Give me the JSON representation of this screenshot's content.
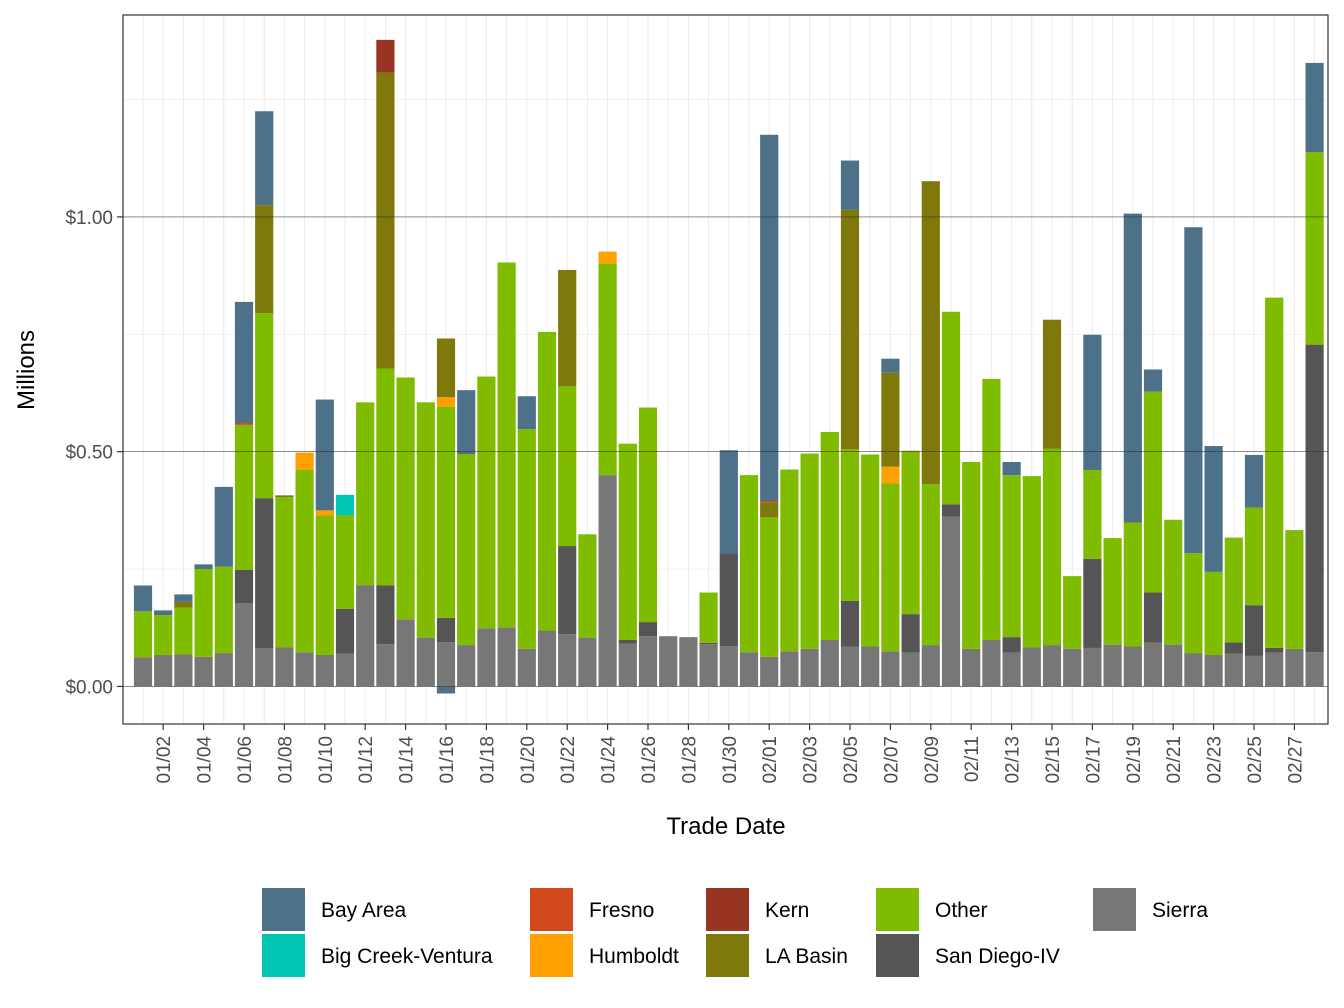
{
  "chart_data": {
    "type": "bar",
    "stacked": true,
    "xlabel": "Trade Date",
    "ylabel": "Millions",
    "ylim": [
      -0.08,
      1.43
    ],
    "y_ticks": [
      0.0,
      0.5,
      1.0
    ],
    "y_tick_labels": [
      "$0.00",
      "$0.50",
      "$1.00"
    ],
    "categories": [
      "01/01",
      "01/02",
      "01/03",
      "01/04",
      "01/05",
      "01/06",
      "01/07",
      "01/08",
      "01/09",
      "01/10",
      "01/11",
      "01/12",
      "01/13",
      "01/14",
      "01/15",
      "01/16",
      "01/17",
      "01/18",
      "01/19",
      "01/20",
      "01/21",
      "01/22",
      "01/23",
      "01/24",
      "01/25",
      "01/26",
      "01/27",
      "01/28",
      "01/29",
      "01/30",
      "01/31",
      "02/01",
      "02/02",
      "02/03",
      "02/04",
      "02/05",
      "02/06",
      "02/07",
      "02/08",
      "02/09",
      "02/10",
      "02/11",
      "02/12",
      "02/13",
      "02/14",
      "02/15",
      "02/16",
      "02/17",
      "02/18",
      "02/19",
      "02/20",
      "02/21",
      "02/22",
      "02/23",
      "02/24",
      "02/25",
      "02/26",
      "02/27",
      "02/28"
    ],
    "x_tick_labels": [
      "01/02",
      "01/04",
      "01/06",
      "01/08",
      "01/10",
      "01/12",
      "01/14",
      "01/16",
      "01/18",
      "01/20",
      "01/22",
      "01/24",
      "01/26",
      "01/28",
      "01/30",
      "02/01",
      "02/03",
      "02/05",
      "02/07",
      "02/09",
      "02/11",
      "02/13",
      "02/15",
      "02/17",
      "02/19",
      "02/21",
      "02/23",
      "02/25",
      "02/27"
    ],
    "legend_position": "bottom",
    "series": [
      {
        "name": "Sierra",
        "color": "#777777",
        "values": [
          0.062,
          0.067,
          0.068,
          0.063,
          0.071,
          0.177,
          0.081,
          0.083,
          0.073,
          0.067,
          0.07,
          0.215,
          0.09,
          0.143,
          0.104,
          0.094,
          0.088,
          0.124,
          0.126,
          0.08,
          0.119,
          0.111,
          0.104,
          0.45,
          0.091,
          0.107,
          0.107,
          0.105,
          0.09,
          0.086,
          0.073,
          0.063,
          0.075,
          0.08,
          0.099,
          0.085,
          0.085,
          0.075,
          0.072,
          0.088,
          0.362,
          0.08,
          0.099,
          0.072,
          0.083,
          0.088,
          0.08,
          0.082,
          0.089,
          0.085,
          0.093,
          0.089,
          0.071,
          0.067,
          0.07,
          0.065,
          0.072,
          0.08,
          0.073
        ]
      },
      {
        "name": "San Diego-IV",
        "color": "#555555",
        "values": [
          0,
          0,
          0,
          0,
          0,
          0.071,
          0.32,
          0,
          0,
          0,
          0.095,
          0,
          0.125,
          0,
          0,
          0.052,
          0,
          0,
          0,
          0,
          0,
          0.188,
          0,
          0,
          0.008,
          0.03,
          0,
          0,
          0.003,
          0.197,
          0,
          0,
          0,
          0,
          0,
          0.097,
          0,
          0,
          0.082,
          0,
          0.026,
          0,
          0,
          0.033,
          0,
          0,
          0,
          0.19,
          0,
          0,
          0.107,
          0,
          0,
          0,
          0.024,
          0.108,
          0.01,
          0,
          0.655
        ]
      },
      {
        "name": "Other",
        "color": "#7fbc00",
        "values": [
          0.098,
          0.085,
          0.1,
          0.187,
          0.184,
          0.309,
          0.394,
          0.32,
          0.388,
          0.297,
          0.2,
          0.39,
          0.462,
          0.515,
          0.501,
          0.45,
          0.407,
          0.536,
          0.777,
          0.468,
          0.636,
          0.34,
          0.22,
          0.451,
          0.418,
          0.457,
          0,
          0,
          0.107,
          0,
          0.377,
          0.297,
          0.387,
          0.416,
          0.443,
          0.323,
          0.409,
          0.358,
          0.348,
          0.343,
          0.41,
          0.398,
          0.556,
          0.345,
          0.365,
          0.418,
          0.155,
          0.189,
          0.227,
          0.264,
          0.428,
          0.266,
          0.213,
          0.177,
          0.223,
          0.208,
          0.746,
          0.253,
          0.41
        ]
      },
      {
        "name": "Humboldt",
        "color": "#ff9f00",
        "values": [
          0,
          0,
          0,
          0,
          0,
          0,
          0,
          0,
          0.037,
          0.011,
          0,
          0,
          0,
          0,
          0,
          0.02,
          0,
          0,
          0,
          0,
          0,
          0,
          0,
          0.025,
          0,
          0,
          0,
          0,
          0,
          0,
          0,
          0,
          0,
          0,
          0,
          0,
          0,
          0.035,
          0,
          0,
          0,
          0,
          0,
          0,
          0,
          0,
          0,
          0,
          0,
          0,
          0,
          0,
          0,
          0,
          0,
          0,
          0,
          0,
          0
        ]
      },
      {
        "name": "Big Creek-Ventura",
        "color": "#00c6b4",
        "values": [
          0,
          0,
          0,
          0,
          0,
          0,
          0,
          0,
          0,
          0,
          0.043,
          0,
          0,
          0,
          0,
          0,
          0,
          0,
          0,
          0,
          0,
          0,
          0,
          0,
          0,
          0,
          0,
          0,
          0,
          0,
          0,
          0,
          0,
          0,
          0,
          0,
          0,
          0,
          0,
          0,
          0,
          0,
          0,
          0,
          0,
          0,
          0,
          0,
          0,
          0,
          0,
          0,
          0,
          0,
          0,
          0,
          0,
          0,
          0
        ]
      },
      {
        "name": "LA Basin",
        "color": "#7f780b",
        "values": [
          0,
          0,
          0.012,
          0,
          0,
          0,
          0.23,
          0.004,
          0,
          0,
          0,
          0,
          0.63,
          0,
          0,
          0.125,
          0,
          0,
          0,
          0,
          0,
          0.248,
          0,
          0,
          0,
          0,
          0,
          0,
          0,
          0,
          0,
          0.032,
          0,
          0,
          0,
          0.51,
          0,
          0.2,
          0,
          0.645,
          0,
          0,
          0,
          0,
          0,
          0.275,
          0,
          0,
          0,
          0,
          0,
          0,
          0,
          0,
          0,
          0,
          0,
          0,
          0
        ]
      },
      {
        "name": "Fresno",
        "color": "#d04a1e",
        "values": [
          0,
          0,
          0,
          0,
          0,
          0.004,
          0,
          0,
          0,
          0,
          0,
          0,
          0,
          0,
          0,
          0,
          0,
          0,
          0,
          0,
          0,
          0,
          0,
          0,
          0,
          0,
          0,
          0,
          0,
          0,
          0,
          0.003,
          0,
          0,
          0,
          0,
          0,
          0,
          0,
          0,
          0,
          0,
          0,
          0,
          0,
          0,
          0,
          0,
          0,
          0,
          0,
          0,
          0,
          0,
          0,
          0,
          0,
          0,
          0
        ]
      },
      {
        "name": "Kern",
        "color": "#973522",
        "values": [
          0,
          0,
          0,
          0,
          0,
          0,
          0,
          0,
          0,
          0,
          0,
          0,
          0.07,
          0,
          0,
          0,
          0,
          0,
          0,
          0,
          0,
          0,
          0,
          0,
          0,
          0,
          0,
          0,
          0,
          0,
          0,
          0,
          0,
          0,
          0,
          0,
          0,
          0,
          0,
          0,
          0,
          0,
          0,
          0,
          0,
          0,
          0,
          0,
          0,
          0,
          0,
          0,
          0,
          0,
          0,
          0,
          0,
          0,
          0
        ]
      },
      {
        "name": "Bay Area",
        "color": "#4c7189",
        "values": [
          0.055,
          0.01,
          0.016,
          0.01,
          0.17,
          0.258,
          0.2,
          0,
          0,
          0.236,
          0,
          0,
          0,
          0,
          0,
          -0.015,
          0.136,
          0,
          0,
          0.07,
          0,
          0,
          0,
          0,
          0,
          0,
          0,
          0,
          0,
          0.22,
          0,
          0.78,
          0,
          0,
          0,
          0.105,
          0,
          0.03,
          0,
          0,
          0,
          0,
          0,
          0.028,
          0,
          0,
          0,
          0.288,
          0,
          0.658,
          0.047,
          0,
          0.694,
          0.268,
          0,
          0.112,
          0,
          0,
          0.19
        ]
      }
    ],
    "legend_order": [
      "Bay Area",
      "Big Creek-Ventura",
      "Fresno",
      "Humboldt",
      "Kern",
      "LA Basin",
      "Other",
      "San Diego-IV",
      "Sierra"
    ]
  }
}
